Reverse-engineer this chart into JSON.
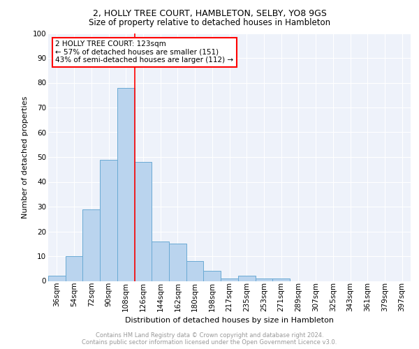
{
  "title1": "2, HOLLY TREE COURT, HAMBLETON, SELBY, YO8 9GS",
  "title2": "Size of property relative to detached houses in Hambleton",
  "xlabel": "Distribution of detached houses by size in Hambleton",
  "ylabel": "Number of detached properties",
  "bar_labels": [
    "36sqm",
    "54sqm",
    "72sqm",
    "90sqm",
    "108sqm",
    "126sqm",
    "144sqm",
    "162sqm",
    "180sqm",
    "198sqm",
    "217sqm",
    "235sqm",
    "253sqm",
    "271sqm",
    "289sqm",
    "307sqm",
    "325sqm",
    "343sqm",
    "361sqm",
    "379sqm",
    "397sqm"
  ],
  "bar_values": [
    2,
    10,
    29,
    49,
    78,
    48,
    16,
    15,
    8,
    4,
    1,
    2,
    1,
    1,
    0,
    0,
    0,
    0,
    0,
    0,
    0
  ],
  "bar_color": "#bad4ee",
  "bar_edgecolor": "#6aaad4",
  "annotation_text": "2 HOLLY TREE COURT: 123sqm\n← 57% of detached houses are smaller (151)\n43% of semi-detached houses are larger (112) →",
  "annotation_box_color": "white",
  "annotation_box_edgecolor": "red",
  "redline_color": "red",
  "footer1": "Contains HM Land Registry data © Crown copyright and database right 2024.",
  "footer2": "Contains public sector information licensed under the Open Government Licence v3.0.",
  "ylim": [
    0,
    100
  ],
  "yticks": [
    0,
    10,
    20,
    30,
    40,
    50,
    60,
    70,
    80,
    90,
    100
  ],
  "background_color": "#eef2fa",
  "grid_color": "white",
  "fig_background": "white",
  "title1_fontsize": 9,
  "title2_fontsize": 8.5,
  "ylabel_fontsize": 8,
  "xlabel_fontsize": 8,
  "tick_fontsize": 7.5,
  "footer_fontsize": 6,
  "annot_fontsize": 7.5
}
